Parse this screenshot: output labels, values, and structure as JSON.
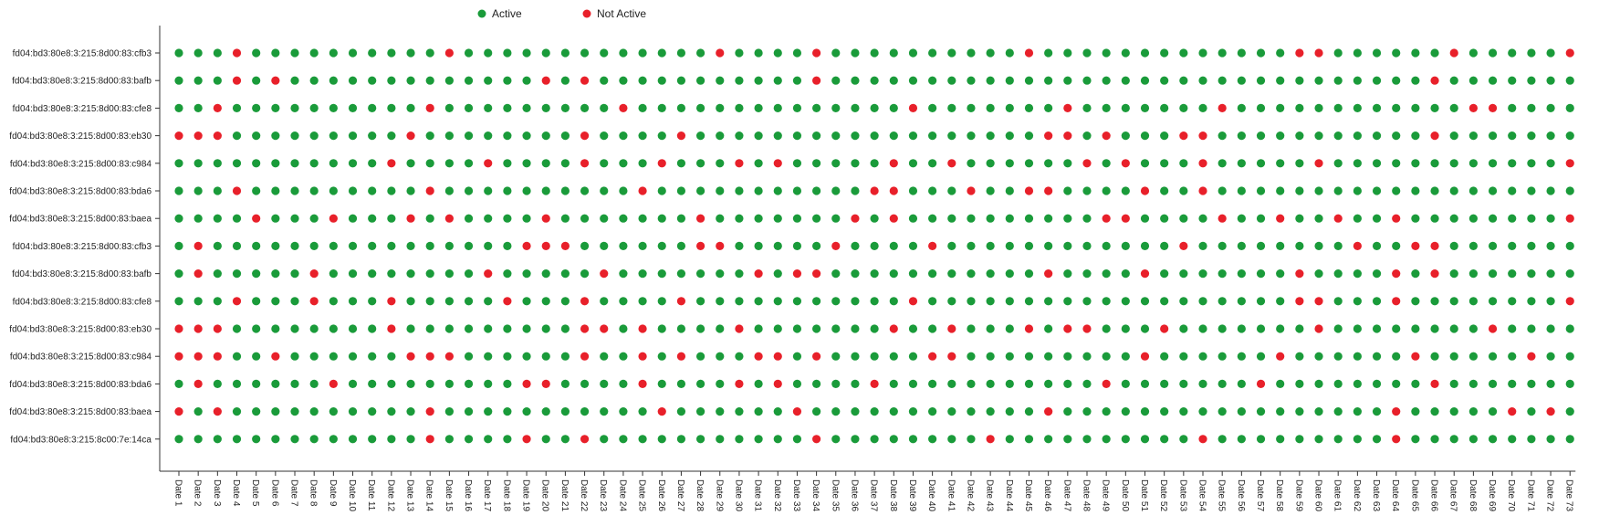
{
  "chart_data": {
    "type": "scatter",
    "legend": {
      "placement": "top-center",
      "items": [
        {
          "label": "Active",
          "color": "#1a9b3a"
        },
        {
          "label": "Not Active",
          "color": "#e8202a"
        }
      ]
    },
    "status_colors": {
      "active": "#1a9b3a",
      "inactive": "#e8202a"
    },
    "x_categories": [
      "Date 1",
      "Date 2",
      "Date 3",
      "Date 4",
      "Date 5",
      "Date 6",
      "Date 7",
      "Date 8",
      "Date 9",
      "Date 10",
      "Date 11",
      "Date 12",
      "Date 13",
      "Date 14",
      "Date 15",
      "Date 16",
      "Date 17",
      "Date 18",
      "Date 19",
      "Date 20",
      "Date 21",
      "Date 22",
      "Date 23",
      "Date 24",
      "Date 25",
      "Date 26",
      "Date 27",
      "Date 28",
      "Date 29",
      "Date 30",
      "Date 31",
      "Date 32",
      "Date 33",
      "Date 34",
      "Date 35",
      "Date 36",
      "Date 37",
      "Date 38",
      "Date 39",
      "Date 40",
      "Date 41",
      "Date 42",
      "Date 43",
      "Date 44",
      "Date 45",
      "Date 46",
      "Date 47",
      "Date 48",
      "Date 49",
      "Date 50",
      "Date 51",
      "Date 52",
      "Date 53",
      "Date 54",
      "Date 55",
      "Date 56",
      "Date 57",
      "Date 58",
      "Date 59",
      "Date 60",
      "Date 61",
      "Date 62",
      "Date 63",
      "Date 64",
      "Date 65",
      "Date 66",
      "Date 67",
      "Date 68",
      "Date 69",
      "Date 70",
      "Date 71",
      "Date 72",
      "Date 73"
    ],
    "rows": [
      {
        "label": "fd04:bd3:80e8:3:215:8d00:83:cfb3",
        "inactive": [
          4,
          15,
          29,
          34,
          45,
          59,
          60,
          67,
          73
        ]
      },
      {
        "label": "fd04:bd3:80e8:3:215:8d00:83:bafb",
        "inactive": [
          4,
          6,
          20,
          22,
          34,
          66
        ]
      },
      {
        "label": "fd04:bd3:80e8:3:215:8d00:83:cfe8",
        "inactive": [
          3,
          14,
          24,
          39,
          47,
          55,
          68,
          69
        ]
      },
      {
        "label": "fd04:bd3:80e8:3:215:8d00:83:eb30",
        "inactive": [
          1,
          2,
          3,
          13,
          22,
          27,
          46,
          47,
          49,
          53,
          54,
          66
        ]
      },
      {
        "label": "fd04:bd3:80e8:3:215:8d00:83:c984",
        "inactive": [
          12,
          17,
          22,
          26,
          30,
          32,
          38,
          41,
          48,
          50,
          54,
          60,
          73
        ]
      },
      {
        "label": "fd04:bd3:80e8:3:215:8d00:83:bda6",
        "inactive": [
          4,
          14,
          25,
          37,
          38,
          42,
          45,
          46,
          51,
          54
        ]
      },
      {
        "label": "fd04:bd3:80e8:3:215:8d00:83:baea",
        "inactive": [
          5,
          9,
          13,
          15,
          20,
          28,
          36,
          38,
          49,
          50,
          55,
          58,
          61,
          64,
          73
        ]
      },
      {
        "label": "fd04:bd3:80e8:3:215:8d00:83:cfb3",
        "inactive": [
          2,
          19,
          20,
          21,
          28,
          29,
          35,
          40,
          53,
          62,
          65,
          66
        ]
      },
      {
        "label": "fd04:bd3:80e8:3:215:8d00:83:bafb",
        "inactive": [
          2,
          8,
          17,
          23,
          31,
          33,
          34,
          46,
          51,
          59,
          64,
          66
        ]
      },
      {
        "label": "fd04:bd3:80e8:3:215:8d00:83:cfe8",
        "inactive": [
          4,
          8,
          12,
          18,
          22,
          27,
          39,
          59,
          60,
          64,
          73
        ]
      },
      {
        "label": "fd04:bd3:80e8:3:215:8d00:83:eb30",
        "inactive": [
          1,
          2,
          3,
          12,
          22,
          23,
          25,
          30,
          38,
          41,
          45,
          47,
          48,
          52,
          60,
          69
        ]
      },
      {
        "label": "fd04:bd3:80e8:3:215:8d00:83:c984",
        "inactive": [
          1,
          2,
          3,
          6,
          13,
          14,
          15,
          22,
          25,
          27,
          31,
          32,
          34,
          40,
          41,
          51,
          58,
          65,
          71
        ]
      },
      {
        "label": "fd04:bd3:80e8:3:215:8d00:83:bda6",
        "inactive": [
          2,
          9,
          19,
          20,
          25,
          30,
          32,
          37,
          49,
          57,
          66
        ]
      },
      {
        "label": "fd04:bd3:80e8:3:215:8d00:83:baea",
        "inactive": [
          1,
          3,
          14,
          26,
          33,
          46,
          64,
          70,
          72
        ]
      },
      {
        "label": "fd04:bd3:80e8:3:215:8c00:7e:14ca",
        "inactive": [
          14,
          19,
          22,
          34,
          43,
          54,
          64
        ]
      }
    ],
    "xlabel": "",
    "ylabel": "",
    "grid": false
  }
}
